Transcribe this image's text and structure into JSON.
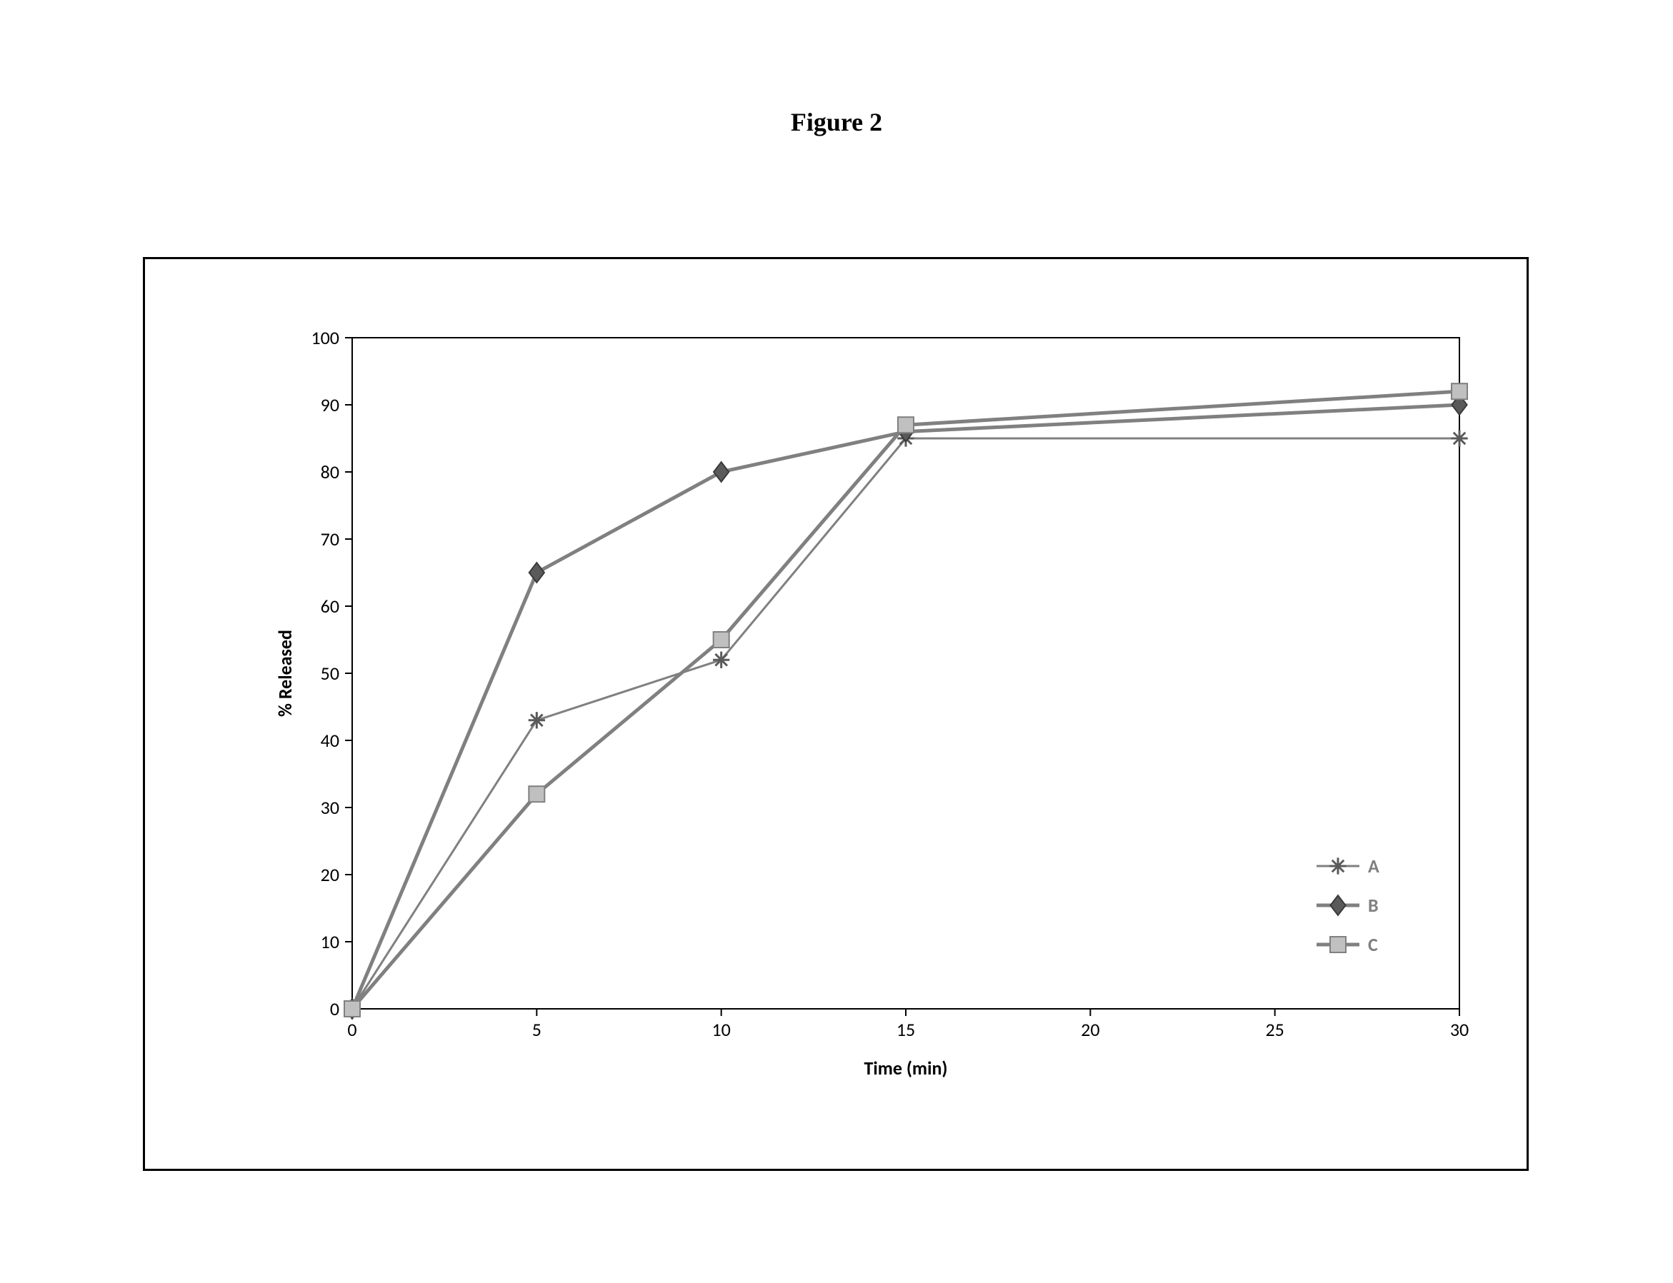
{
  "title": "Figure 2",
  "chart": {
    "type": "line",
    "xlabel": "Time (min)",
    "ylabel": "%  Released",
    "label_fontsize": 26,
    "label_fontweight": "bold",
    "tick_fontsize": 26,
    "background_color": "#ffffff",
    "axis_color": "#000000",
    "axis_width": 2,
    "x_categories": [
      "0",
      "5",
      "10",
      "15",
      "20",
      "25",
      "30"
    ],
    "x_positions": [
      0,
      1,
      2,
      3,
      4,
      5,
      6
    ],
    "ylim": [
      0,
      100
    ],
    "ytick_step": 10,
    "yticks": [
      0,
      10,
      20,
      30,
      40,
      50,
      60,
      70,
      80,
      90,
      100
    ],
    "tick_length": 10,
    "series": [
      {
        "name": "A",
        "label": "A",
        "x": [
          0,
          1,
          2,
          3,
          6
        ],
        "y": [
          0,
          43,
          52,
          85,
          85
        ],
        "line_color": "#808080",
        "line_width": 3,
        "marker": "star",
        "marker_size": 14,
        "marker_fill": "#5a5a5a",
        "marker_stroke": "#3a3a3a"
      },
      {
        "name": "B",
        "label": "B",
        "x": [
          0,
          1,
          2,
          3,
          6
        ],
        "y": [
          0,
          65,
          80,
          86,
          90
        ],
        "line_color": "#808080",
        "line_width": 5,
        "marker": "diamond",
        "marker_size": 18,
        "marker_fill": "#5a5a5a",
        "marker_stroke": "#3a3a3a"
      },
      {
        "name": "C",
        "label": "C",
        "x": [
          0,
          1,
          2,
          3,
          6
        ],
        "y": [
          0,
          32,
          55,
          87,
          92
        ],
        "line_color": "#808080",
        "line_width": 5,
        "marker": "square",
        "marker_size": 22,
        "marker_fill": "#c0c0c0",
        "marker_stroke": "#808080"
      }
    ],
    "legend": {
      "position": "bottom-right",
      "fontsize": 26,
      "fontweight": "bold",
      "text_color": "#808080",
      "line_length": 60
    }
  }
}
